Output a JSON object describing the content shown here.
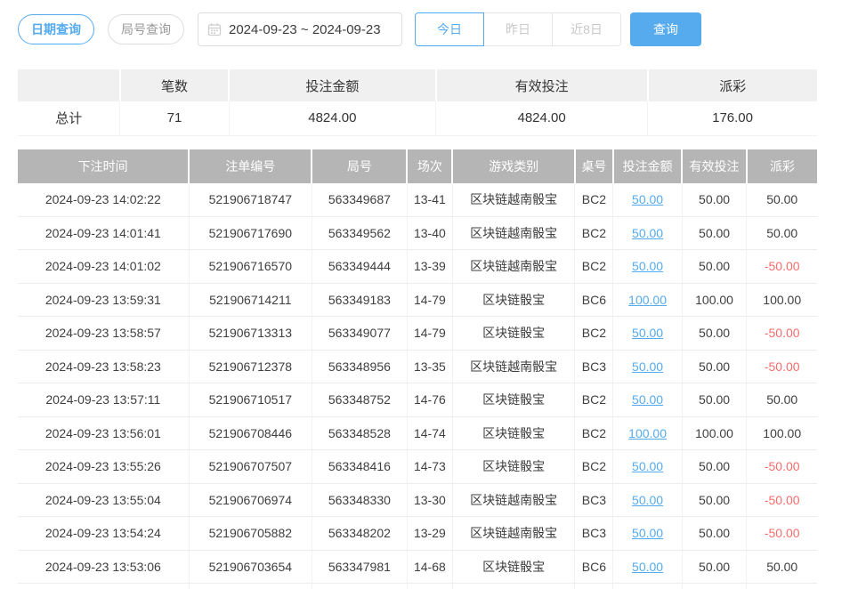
{
  "colors": {
    "accent": "#55abee",
    "negative": "#f56c6c",
    "table_header_bg": "#b5b5b5",
    "summary_header_bg": "#f0f0f0"
  },
  "toolbar": {
    "date_query_label": "日期查询",
    "round_query_label": "局号查询",
    "date_range_value": "2024-09-23 ~ 2024-09-23",
    "calendar_icon": "calendar-icon",
    "range_buttons": [
      "今日",
      "昨日",
      "近8日"
    ],
    "active_range": "今日",
    "search_label": "查询"
  },
  "summary": {
    "columns": [
      "",
      "笔数",
      "投注金额",
      "有效投注",
      "派彩"
    ],
    "row_label": "总计",
    "count": "71",
    "bet_amount": "4824.00",
    "valid_bet": "4824.00",
    "payout": "176.00"
  },
  "table": {
    "columns": [
      "下注时间",
      "注单编号",
      "局号",
      "场次",
      "游戏类别",
      "桌号",
      "投注金额",
      "有效投注",
      "派彩"
    ],
    "rows": [
      [
        "2024-09-23 14:02:22",
        "521906718747",
        "563349687",
        "13-41",
        "区块链越南骰宝",
        "BC2",
        "50.00",
        "50.00",
        "50.00"
      ],
      [
        "2024-09-23 14:01:41",
        "521906717690",
        "563349562",
        "13-40",
        "区块链越南骰宝",
        "BC2",
        "50.00",
        "50.00",
        "50.00"
      ],
      [
        "2024-09-23 14:01:02",
        "521906716570",
        "563349444",
        "13-39",
        "区块链越南骰宝",
        "BC2",
        "50.00",
        "50.00",
        "-50.00"
      ],
      [
        "2024-09-23 13:59:31",
        "521906714211",
        "563349183",
        "14-79",
        "区块链骰宝",
        "BC6",
        "100.00",
        "100.00",
        "100.00"
      ],
      [
        "2024-09-23 13:58:57",
        "521906713313",
        "563349077",
        "14-79",
        "区块链骰宝",
        "BC2",
        "50.00",
        "50.00",
        "-50.00"
      ],
      [
        "2024-09-23 13:58:23",
        "521906712378",
        "563348956",
        "13-35",
        "区块链越南骰宝",
        "BC3",
        "50.00",
        "50.00",
        "-50.00"
      ],
      [
        "2024-09-23 13:57:11",
        "521906710517",
        "563348752",
        "14-76",
        "区块链骰宝",
        "BC2",
        "50.00",
        "50.00",
        "50.00"
      ],
      [
        "2024-09-23 13:56:01",
        "521906708446",
        "563348528",
        "14-74",
        "区块链骰宝",
        "BC2",
        "100.00",
        "100.00",
        "100.00"
      ],
      [
        "2024-09-23 13:55:26",
        "521906707507",
        "563348416",
        "14-73",
        "区块链骰宝",
        "BC2",
        "50.00",
        "50.00",
        "-50.00"
      ],
      [
        "2024-09-23 13:55:04",
        "521906706974",
        "563348330",
        "13-30",
        "区块链越南骰宝",
        "BC3",
        "50.00",
        "50.00",
        "-50.00"
      ],
      [
        "2024-09-23 13:54:24",
        "521906705882",
        "563348202",
        "13-29",
        "区块链越南骰宝",
        "BC3",
        "50.00",
        "50.00",
        "-50.00"
      ],
      [
        "2024-09-23 13:53:06",
        "521906703654",
        "563347981",
        "14-68",
        "区块链骰宝",
        "BC6",
        "50.00",
        "50.00",
        "50.00"
      ],
      [
        "",
        "",
        "",
        "",
        "",
        "",
        "",
        "",
        ""
      ]
    ]
  }
}
